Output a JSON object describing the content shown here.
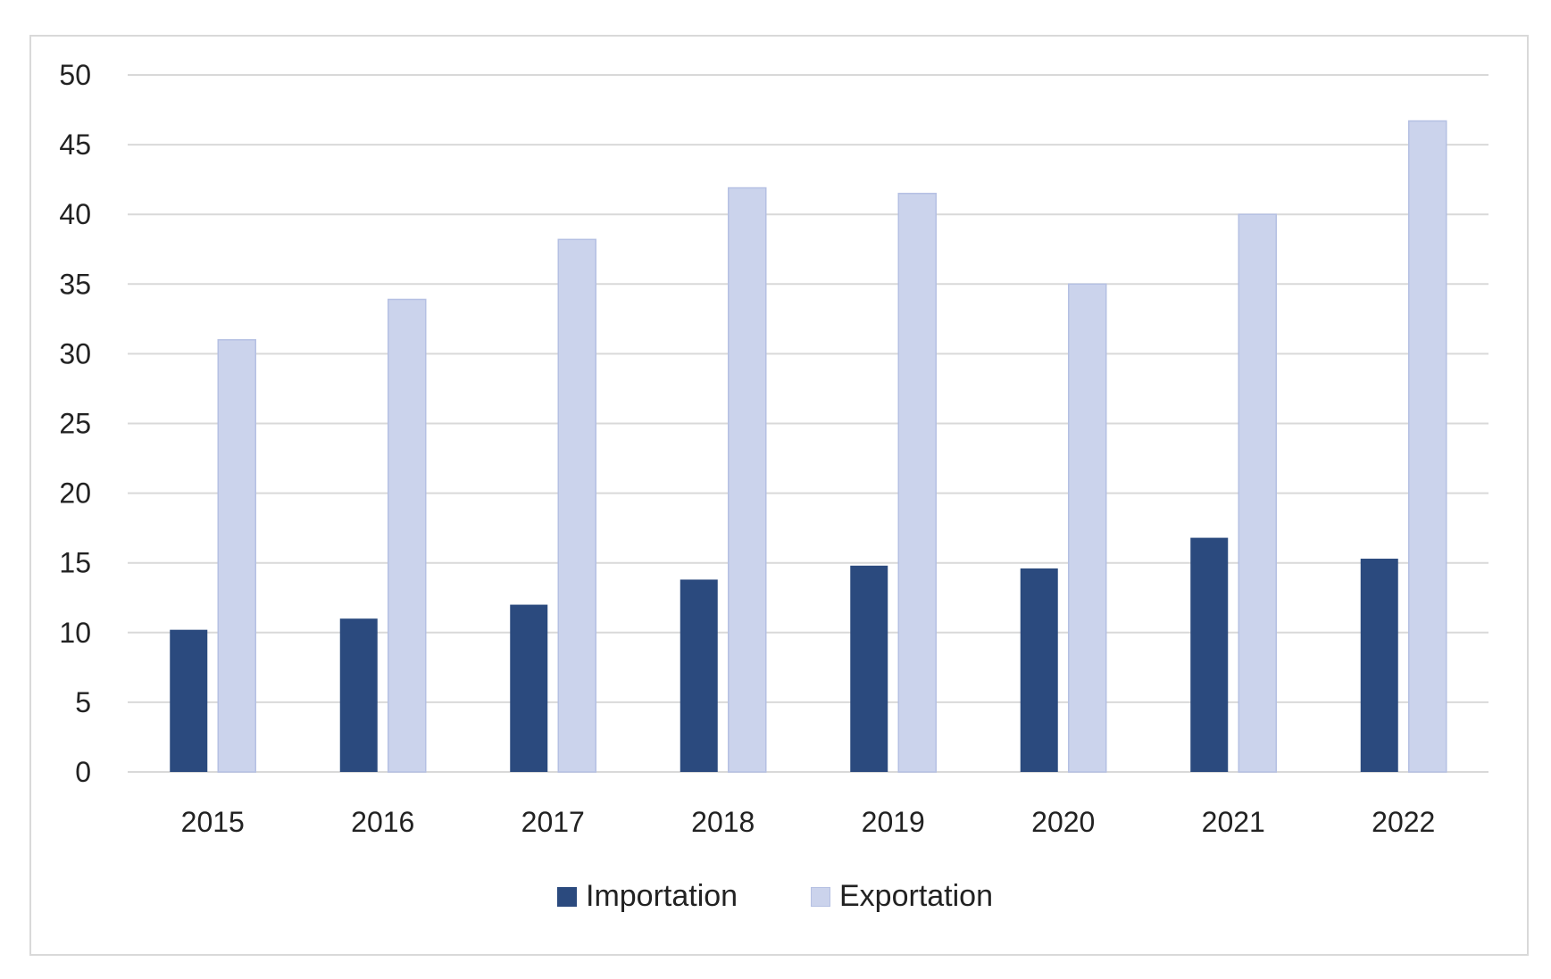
{
  "chart_data": {
    "type": "bar",
    "title": "",
    "xlabel": "",
    "ylabel": "",
    "categories": [
      "2015",
      "2016",
      "2017",
      "2018",
      "2019",
      "2020",
      "2021",
      "2022"
    ],
    "series": [
      {
        "name": "Importation",
        "color": "#2b4a7e",
        "values": [
          10.2,
          11.0,
          12.0,
          13.8,
          14.8,
          14.6,
          16.8,
          15.3
        ]
      },
      {
        "name": "Exportation",
        "color": "#cbd3ec",
        "values": [
          31.0,
          33.9,
          38.2,
          41.9,
          41.5,
          35.0,
          40.0,
          46.7
        ]
      }
    ],
    "ylim": [
      0,
      50
    ],
    "yticks": [
      "0",
      "5",
      "10",
      "15",
      "20",
      "25",
      "30",
      "35",
      "40",
      "45",
      "50"
    ],
    "grid": true,
    "legend_position": "bottom"
  }
}
